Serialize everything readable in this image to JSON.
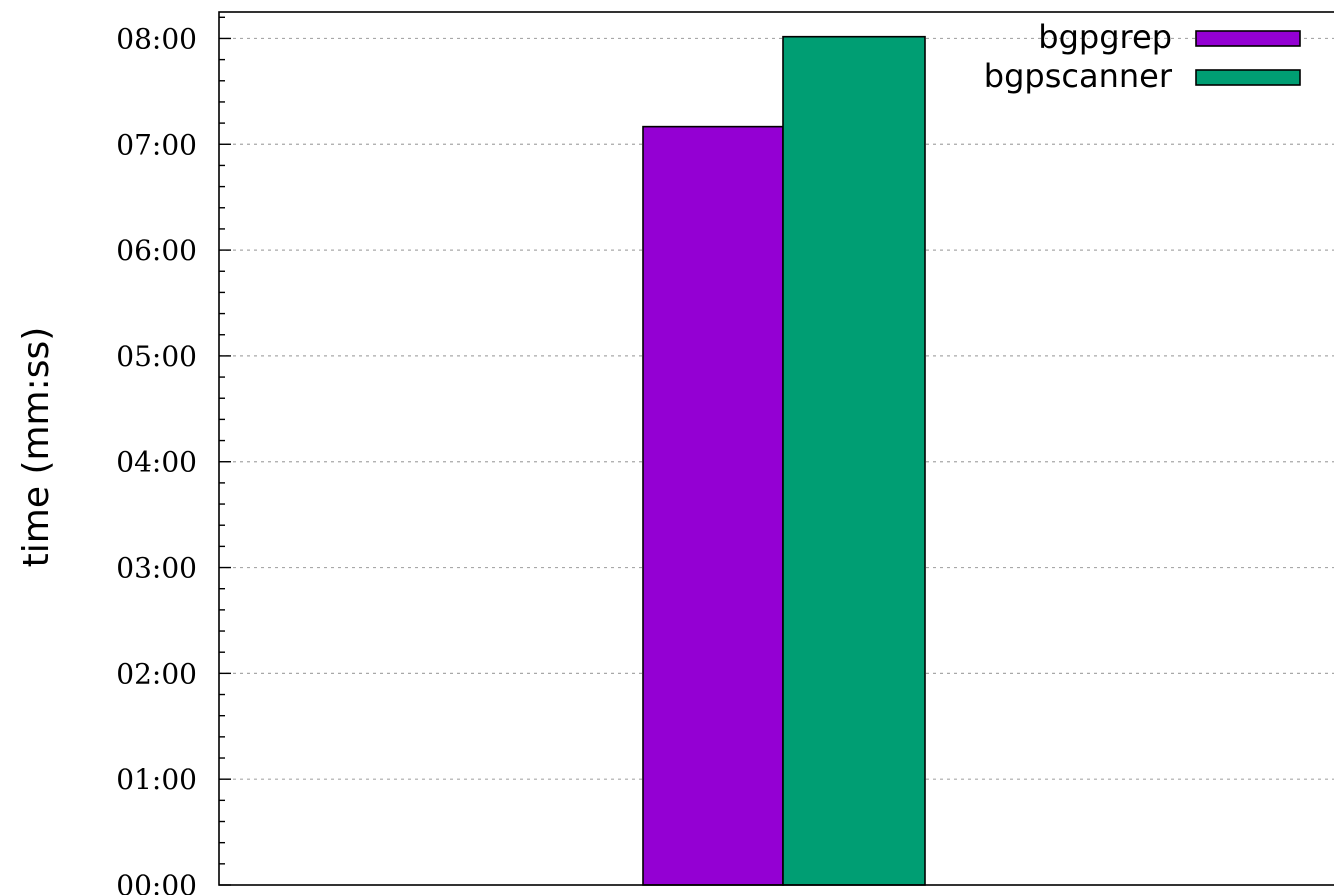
{
  "chart_data": {
    "type": "bar",
    "title": "",
    "xlabel": "",
    "ylabel": "time (mm:ss)",
    "categories": [
      ""
    ],
    "series": [
      {
        "name": "bgpgrep",
        "color": "#9400d3",
        "values": [
          430
        ]
      },
      {
        "name": "bgpscanner",
        "color": "#009e73",
        "values": [
          481
        ]
      }
    ],
    "ylim": [
      0,
      495
    ],
    "yticks": [
      {
        "value": 0,
        "label": "00:00"
      },
      {
        "value": 60,
        "label": "01:00"
      },
      {
        "value": 120,
        "label": "02:00"
      },
      {
        "value": 180,
        "label": "03:00"
      },
      {
        "value": 240,
        "label": "04:00"
      },
      {
        "value": 300,
        "label": "05:00"
      },
      {
        "value": 360,
        "label": "06:00"
      },
      {
        "value": 420,
        "label": "07:00"
      },
      {
        "value": 480,
        "label": "08:00"
      }
    ],
    "minor_tick_interval": 12,
    "grid": true,
    "legend_position": "top-right"
  }
}
